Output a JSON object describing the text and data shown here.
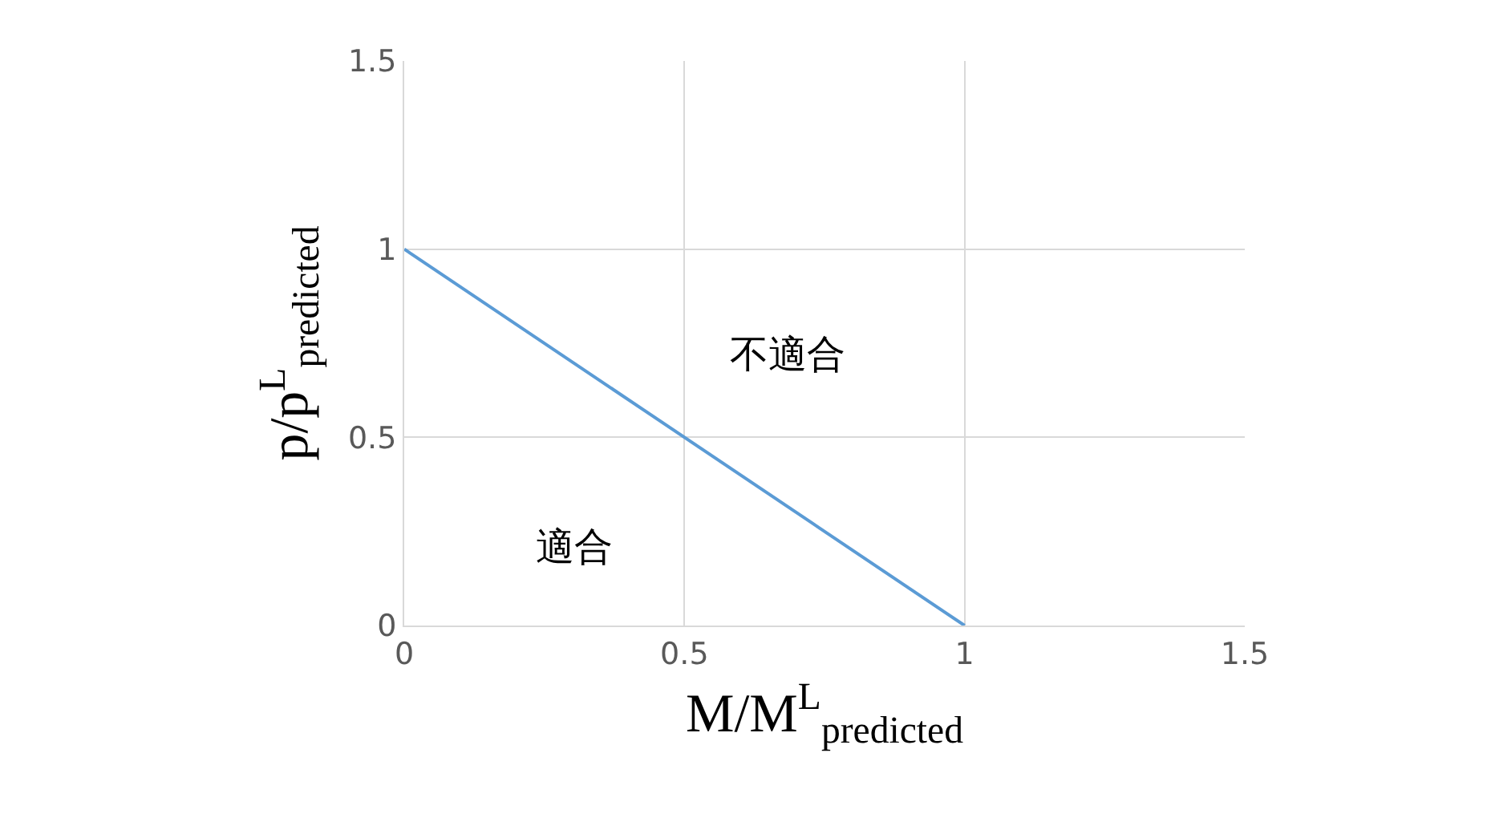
{
  "chart_data": {
    "type": "line",
    "xlabel": "M/M$^{L}$$_{predicted}$",
    "ylabel": "p/p$^{L}$$_{predicted}$",
    "x": [
      0,
      1
    ],
    "series": [
      {
        "color": "#5b9bd5",
        "values": [
          1,
          0
        ]
      }
    ],
    "xlim": [
      0,
      1.5
    ],
    "xticks": [
      0,
      0.5,
      1,
      1.5
    ],
    "ylim": [
      0,
      1.5
    ],
    "yticks": [
      0,
      0.5,
      1,
      1.5
    ],
    "grid": true,
    "legend": false,
    "marker": "none",
    "line_style": "solid",
    "annotations": [
      "適合",
      "不適合"
    ]
  }
}
